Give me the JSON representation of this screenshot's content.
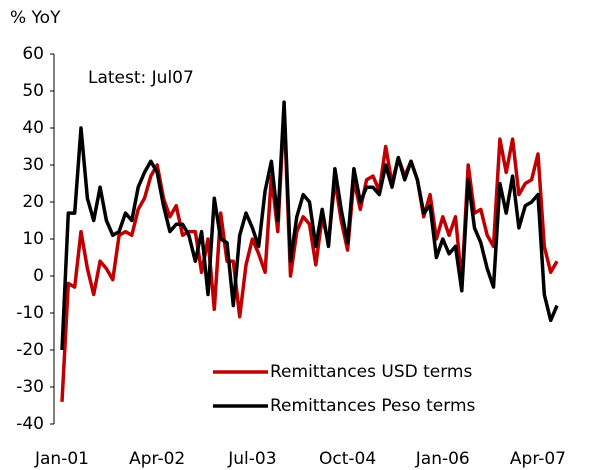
{
  "chart_data": {
    "type": "line",
    "y_label": "% YoY",
    "annotation": "Latest: Jul07",
    "categories": [
      "Jan-01",
      null,
      null,
      null,
      null,
      null,
      null,
      null,
      null,
      null,
      null,
      null,
      null,
      null,
      null,
      "Apr-02",
      null,
      null,
      null,
      null,
      null,
      null,
      null,
      null,
      null,
      null,
      null,
      null,
      null,
      null,
      "Jul-03",
      null,
      null,
      null,
      null,
      null,
      null,
      null,
      null,
      null,
      null,
      null,
      null,
      null,
      null,
      "Oct-04",
      null,
      null,
      null,
      null,
      null,
      null,
      null,
      null,
      null,
      null,
      null,
      null,
      null,
      null,
      "Jan-06",
      null,
      null,
      null,
      null,
      null,
      null,
      null,
      null,
      null,
      null,
      null,
      null,
      null,
      null,
      "Apr-07",
      null,
      null,
      null
    ],
    "series": [
      {
        "name": "Remittances USD terms",
        "color": "#c00000",
        "values": [
          -34,
          -2,
          -3,
          12,
          2,
          -5,
          4,
          2,
          -1,
          11,
          12,
          11,
          18,
          21,
          27,
          30,
          21,
          16,
          19,
          11,
          12,
          12,
          1,
          10,
          -9,
          17,
          4,
          4,
          -11,
          3,
          10,
          6,
          1,
          27,
          12,
          45,
          0,
          12,
          16,
          14,
          3,
          16,
          9,
          26,
          15,
          7,
          26,
          18,
          26,
          27,
          23,
          35,
          25,
          32,
          27,
          31,
          26,
          16,
          22,
          10,
          16,
          11,
          16,
          -2,
          30,
          17,
          18,
          11,
          8,
          37,
          28,
          37,
          22,
          25,
          26,
          33,
          8,
          1,
          4
        ]
      },
      {
        "name": "Remittances Peso terms",
        "color": "#000000",
        "values": [
          -20,
          17,
          17,
          40,
          21,
          15,
          24,
          15,
          11,
          12,
          17,
          15,
          24,
          28,
          31,
          28,
          19,
          12,
          14,
          14,
          11,
          4,
          12,
          -5,
          21,
          10,
          9,
          -8,
          11,
          17,
          13,
          8,
          23,
          31,
          15,
          47,
          4,
          16,
          22,
          20,
          8,
          18,
          8,
          29,
          18,
          9,
          29,
          20,
          24,
          24,
          22,
          30,
          24,
          32,
          26,
          31,
          26,
          17,
          19,
          5,
          10,
          6,
          8,
          -4,
          26,
          13,
          9,
          2,
          -3,
          25,
          17,
          27,
          13,
          19,
          20,
          22,
          -5,
          -12,
          -8
        ]
      }
    ],
    "ylim": [
      -40,
      60
    ],
    "yticks": [
      -40,
      -30,
      -20,
      -10,
      0,
      10,
      20,
      30,
      40,
      50,
      60
    ]
  }
}
